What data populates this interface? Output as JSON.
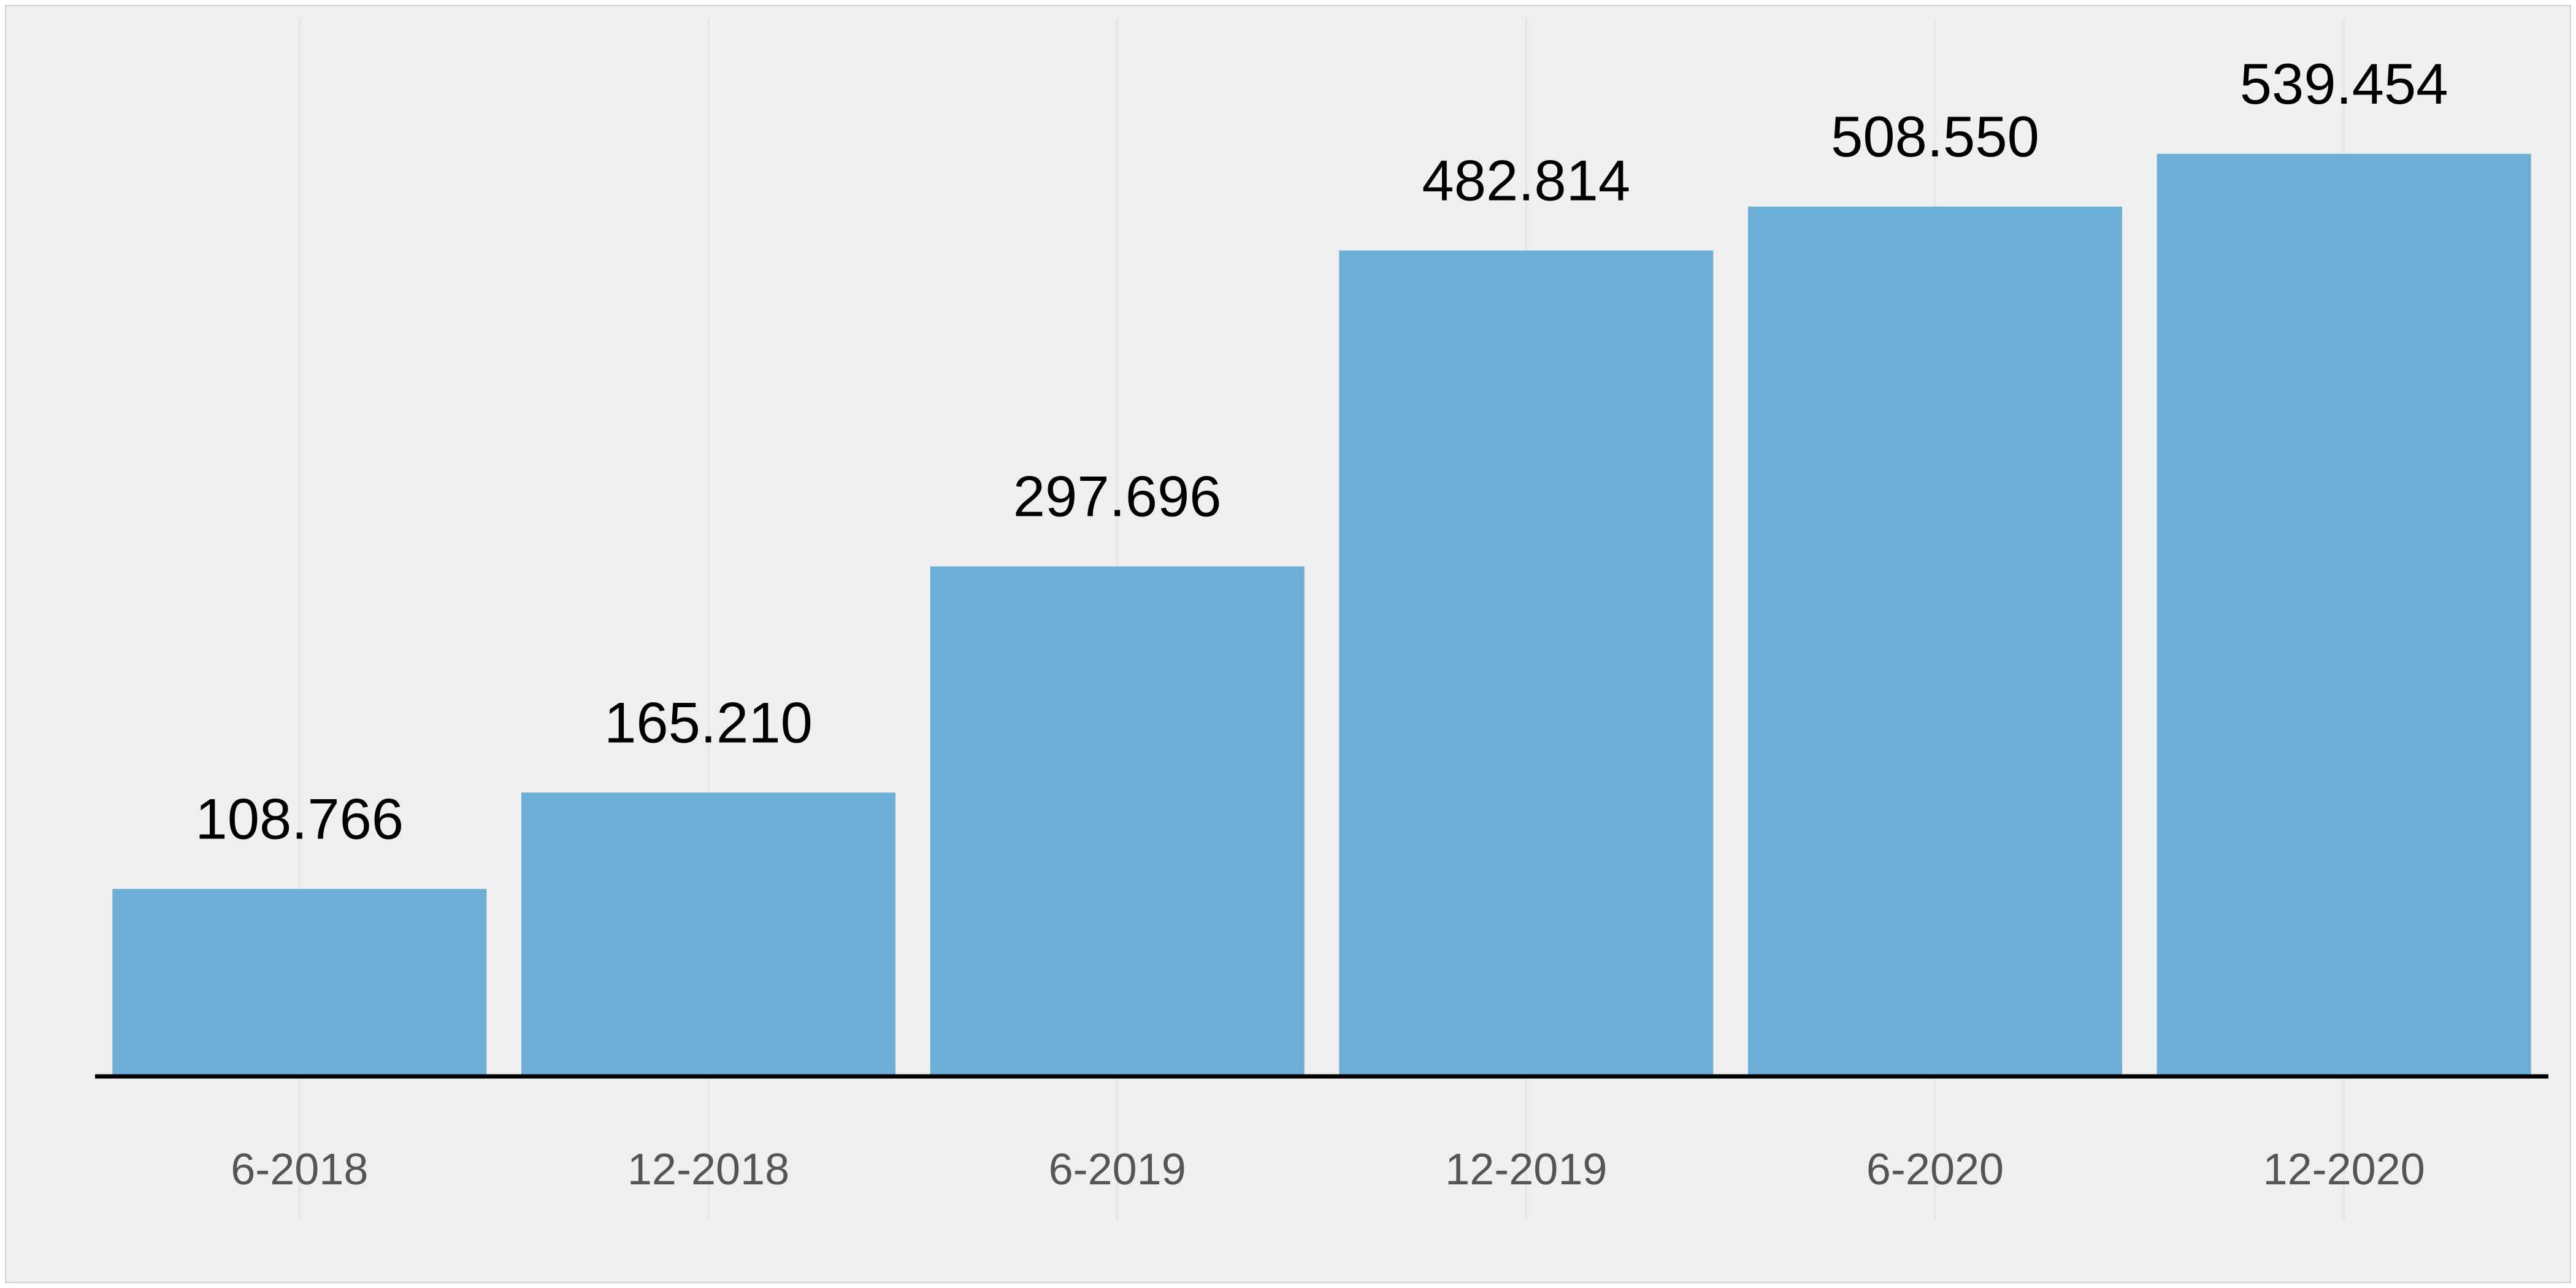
{
  "chart_data": {
    "type": "bar",
    "categories": [
      "6-2018",
      "12-2018",
      "6-2019",
      "12-2019",
      "6-2020",
      "12-2020"
    ],
    "values": [
      108.766,
      165.21,
      297.696,
      482.814,
      508.55,
      539.454
    ],
    "value_labels": [
      "108.766",
      "165.210",
      "297.696",
      "482.814",
      "508.550",
      "539.454"
    ],
    "title": "",
    "xlabel": "",
    "ylabel": "",
    "ylim": [
      0,
      580
    ],
    "grid": "vertical",
    "legend": "none",
    "colors": {
      "bar": "#6baed6",
      "background": "#efefef",
      "axis": "#000000",
      "grid": "#e4e4e4"
    }
  }
}
